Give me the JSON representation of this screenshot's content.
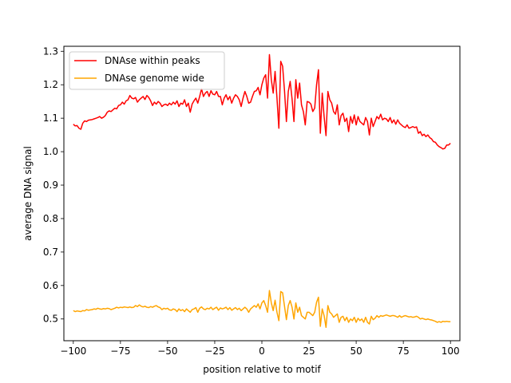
{
  "chart_data": {
    "type": "line",
    "title": "",
    "xlabel": "position relative to motif",
    "ylabel": "average DNA signal",
    "xlim": [
      -105,
      105
    ],
    "ylim": [
      0.435,
      1.315
    ],
    "xticks": [
      -100,
      -75,
      -50,
      -25,
      0,
      25,
      50,
      75,
      100
    ],
    "yticks": [
      0.5,
      0.6,
      0.7,
      0.8,
      0.9,
      1.0,
      1.1,
      1.2,
      1.3
    ],
    "xtick_labels": [
      "−100",
      "−75",
      "−50",
      "−25",
      "0",
      "25",
      "50",
      "75",
      "100"
    ],
    "ytick_labels": [
      "0.5",
      "0.6",
      "0.7",
      "0.8",
      "0.9",
      "1.0",
      "1.1",
      "1.2",
      "1.3"
    ],
    "grid": false,
    "legend_position": "top-left",
    "series": [
      {
        "name": "DNAse within peaks",
        "color": "#ff0000",
        "x": [
          -100,
          -99,
          -98,
          -97,
          -96,
          -95,
          -94,
          -93,
          -92,
          -91,
          -90,
          -89,
          -88,
          -87,
          -86,
          -85,
          -84,
          -83,
          -82,
          -81,
          -80,
          -79,
          -78,
          -77,
          -76,
          -75,
          -74,
          -73,
          -72,
          -71,
          -70,
          -69,
          -68,
          -67,
          -66,
          -65,
          -64,
          -63,
          -62,
          -61,
          -60,
          -59,
          -58,
          -57,
          -56,
          -55,
          -54,
          -53,
          -52,
          -51,
          -50,
          -49,
          -48,
          -47,
          -46,
          -45,
          -44,
          -43,
          -42,
          -41,
          -40,
          -39,
          -38,
          -37,
          -36,
          -35,
          -34,
          -33,
          -32,
          -31,
          -30,
          -29,
          -28,
          -27,
          -26,
          -25,
          -24,
          -23,
          -22,
          -21,
          -20,
          -19,
          -18,
          -17,
          -16,
          -15,
          -14,
          -13,
          -12,
          -11,
          -10,
          -9,
          -8,
          -7,
          -6,
          -5,
          -4,
          -3,
          -2,
          -1,
          0,
          1,
          2,
          3,
          4,
          5,
          6,
          7,
          8,
          9,
          10,
          11,
          12,
          13,
          14,
          15,
          16,
          17,
          18,
          19,
          20,
          21,
          22,
          23,
          24,
          25,
          26,
          27,
          28,
          29,
          30,
          31,
          32,
          33,
          34,
          35,
          36,
          37,
          38,
          39,
          40,
          41,
          42,
          43,
          44,
          45,
          46,
          47,
          48,
          49,
          50,
          51,
          52,
          53,
          54,
          55,
          56,
          57,
          58,
          59,
          60,
          61,
          62,
          63,
          64,
          65,
          66,
          67,
          68,
          69,
          70,
          71,
          72,
          73,
          74,
          75,
          76,
          77,
          78,
          79,
          80,
          81,
          82,
          83,
          84,
          85,
          86,
          87,
          88,
          89,
          90,
          91,
          92,
          93,
          94,
          95,
          96,
          97,
          98,
          99,
          100
        ],
        "values": [
          1.082,
          1.077,
          1.078,
          1.07,
          1.067,
          1.085,
          1.092,
          1.09,
          1.094,
          1.095,
          1.096,
          1.098,
          1.1,
          1.102,
          1.105,
          1.1,
          1.103,
          1.108,
          1.118,
          1.122,
          1.12,
          1.125,
          1.13,
          1.128,
          1.138,
          1.14,
          1.148,
          1.142,
          1.152,
          1.155,
          1.168,
          1.16,
          1.158,
          1.162,
          1.148,
          1.155,
          1.16,
          1.165,
          1.156,
          1.168,
          1.162,
          1.152,
          1.138,
          1.148,
          1.142,
          1.15,
          1.145,
          1.135,
          1.14,
          1.142,
          1.138,
          1.145,
          1.14,
          1.148,
          1.142,
          1.152,
          1.135,
          1.145,
          1.142,
          1.155,
          1.135,
          1.145,
          1.118,
          1.142,
          1.152,
          1.16,
          1.145,
          1.165,
          1.188,
          1.165,
          1.175,
          1.18,
          1.165,
          1.182,
          1.172,
          1.17,
          1.18,
          1.165,
          1.165,
          1.14,
          1.16,
          1.17,
          1.155,
          1.165,
          1.145,
          1.16,
          1.17,
          1.165,
          1.155,
          1.135,
          1.16,
          1.18,
          1.165,
          1.145,
          1.148,
          1.165,
          1.18,
          1.182,
          1.192,
          1.17,
          1.2,
          1.22,
          1.23,
          1.16,
          1.29,
          1.215,
          1.175,
          1.24,
          1.16,
          1.07,
          1.27,
          1.255,
          1.182,
          1.09,
          1.18,
          1.21,
          1.158,
          1.09,
          1.215,
          1.16,
          1.205,
          1.14,
          1.12,
          1.08,
          1.15,
          1.148,
          1.142,
          1.12,
          1.13,
          1.2,
          1.245,
          1.055,
          1.175,
          1.105,
          1.048,
          1.18,
          1.155,
          1.145,
          1.12,
          1.112,
          1.14,
          1.08,
          1.108,
          1.115,
          1.09,
          1.1,
          1.06,
          1.105,
          1.085,
          1.11,
          1.08,
          1.105,
          1.09,
          1.085,
          1.08,
          1.102,
          1.09,
          1.05,
          1.1,
          1.075,
          1.09,
          1.105,
          1.098,
          1.112,
          1.095,
          1.1,
          1.098,
          1.09,
          1.102,
          1.086,
          1.095,
          1.082,
          1.095,
          1.085,
          1.08,
          1.075,
          1.072,
          1.08,
          1.07,
          1.072,
          1.075,
          1.072,
          1.074,
          1.055,
          1.06,
          1.048,
          1.052,
          1.045,
          1.05,
          1.042,
          1.038,
          1.03,
          1.028,
          1.02,
          1.015,
          1.012,
          1.008,
          1.01,
          1.02,
          1.02,
          1.025
        ]
      },
      {
        "name": "DNAse genome wide",
        "color": "#ffa500",
        "x": [
          -100,
          -99,
          -98,
          -97,
          -96,
          -95,
          -94,
          -93,
          -92,
          -91,
          -90,
          -89,
          -88,
          -87,
          -86,
          -85,
          -84,
          -83,
          -82,
          -81,
          -80,
          -79,
          -78,
          -77,
          -76,
          -75,
          -74,
          -73,
          -72,
          -71,
          -70,
          -69,
          -68,
          -67,
          -66,
          -65,
          -64,
          -63,
          -62,
          -61,
          -60,
          -59,
          -58,
          -57,
          -56,
          -55,
          -54,
          -53,
          -52,
          -51,
          -50,
          -49,
          -48,
          -47,
          -46,
          -45,
          -44,
          -43,
          -42,
          -41,
          -40,
          -39,
          -38,
          -37,
          -36,
          -35,
          -34,
          -33,
          -32,
          -31,
          -30,
          -29,
          -28,
          -27,
          -26,
          -25,
          -24,
          -23,
          -22,
          -21,
          -20,
          -19,
          -18,
          -17,
          -16,
          -15,
          -14,
          -13,
          -12,
          -11,
          -10,
          -9,
          -8,
          -7,
          -6,
          -5,
          -4,
          -3,
          -2,
          -1,
          0,
          1,
          2,
          3,
          4,
          5,
          6,
          7,
          8,
          9,
          10,
          11,
          12,
          13,
          14,
          15,
          16,
          17,
          18,
          19,
          20,
          21,
          22,
          23,
          24,
          25,
          26,
          27,
          28,
          29,
          30,
          31,
          32,
          33,
          34,
          35,
          36,
          37,
          38,
          39,
          40,
          41,
          42,
          43,
          44,
          45,
          46,
          47,
          48,
          49,
          50,
          51,
          52,
          53,
          54,
          55,
          56,
          57,
          58,
          59,
          60,
          61,
          62,
          63,
          64,
          65,
          66,
          67,
          68,
          69,
          70,
          71,
          72,
          73,
          74,
          75,
          76,
          77,
          78,
          79,
          80,
          81,
          82,
          83,
          84,
          85,
          86,
          87,
          88,
          89,
          90,
          91,
          92,
          93,
          94,
          95,
          96,
          97,
          98,
          99,
          100
        ],
        "values": [
          0.525,
          0.522,
          0.524,
          0.523,
          0.522,
          0.525,
          0.524,
          0.528,
          0.526,
          0.527,
          0.528,
          0.53,
          0.529,
          0.532,
          0.53,
          0.529,
          0.531,
          0.53,
          0.532,
          0.531,
          0.528,
          0.53,
          0.532,
          0.535,
          0.533,
          0.535,
          0.534,
          0.536,
          0.535,
          0.534,
          0.536,
          0.534,
          0.535,
          0.54,
          0.537,
          0.542,
          0.538,
          0.536,
          0.538,
          0.535,
          0.534,
          0.537,
          0.535,
          0.538,
          0.54,
          0.536,
          0.534,
          0.528,
          0.532,
          0.53,
          0.532,
          0.527,
          0.526,
          0.53,
          0.528,
          0.522,
          0.53,
          0.525,
          0.528,
          0.522,
          0.53,
          0.525,
          0.52,
          0.528,
          0.53,
          0.534,
          0.52,
          0.532,
          0.536,
          0.53,
          0.528,
          0.532,
          0.53,
          0.535,
          0.528,
          0.532,
          0.535,
          0.526,
          0.533,
          0.53,
          0.532,
          0.535,
          0.528,
          0.534,
          0.526,
          0.53,
          0.534,
          0.528,
          0.532,
          0.525,
          0.53,
          0.535,
          0.53,
          0.52,
          0.53,
          0.535,
          0.54,
          0.535,
          0.545,
          0.53,
          0.548,
          0.555,
          0.54,
          0.52,
          0.585,
          0.548,
          0.525,
          0.556,
          0.52,
          0.495,
          0.582,
          0.578,
          0.538,
          0.498,
          0.54,
          0.555,
          0.535,
          0.5,
          0.548,
          0.52,
          0.535,
          0.51,
          0.505,
          0.5,
          0.52,
          0.52,
          0.515,
          0.51,
          0.52,
          0.55,
          0.565,
          0.478,
          0.53,
          0.51,
          0.475,
          0.54,
          0.52,
          0.515,
          0.505,
          0.51,
          0.515,
          0.49,
          0.505,
          0.508,
          0.495,
          0.505,
          0.49,
          0.5,
          0.495,
          0.505,
          0.49,
          0.502,
          0.495,
          0.5,
          0.49,
          0.505,
          0.49,
          0.485,
          0.508,
          0.498,
          0.502,
          0.51,
          0.505,
          0.51,
          0.508,
          0.51,
          0.512,
          0.51,
          0.508,
          0.51,
          0.51,
          0.508,
          0.505,
          0.51,
          0.505,
          0.508,
          0.51,
          0.508,
          0.506,
          0.507,
          0.505,
          0.506,
          0.508,
          0.505,
          0.5,
          0.502,
          0.5,
          0.498,
          0.5,
          0.498,
          0.497,
          0.495,
          0.493,
          0.49,
          0.492,
          0.49,
          0.493,
          0.492,
          0.493,
          0.492,
          0.492
        ]
      }
    ]
  }
}
